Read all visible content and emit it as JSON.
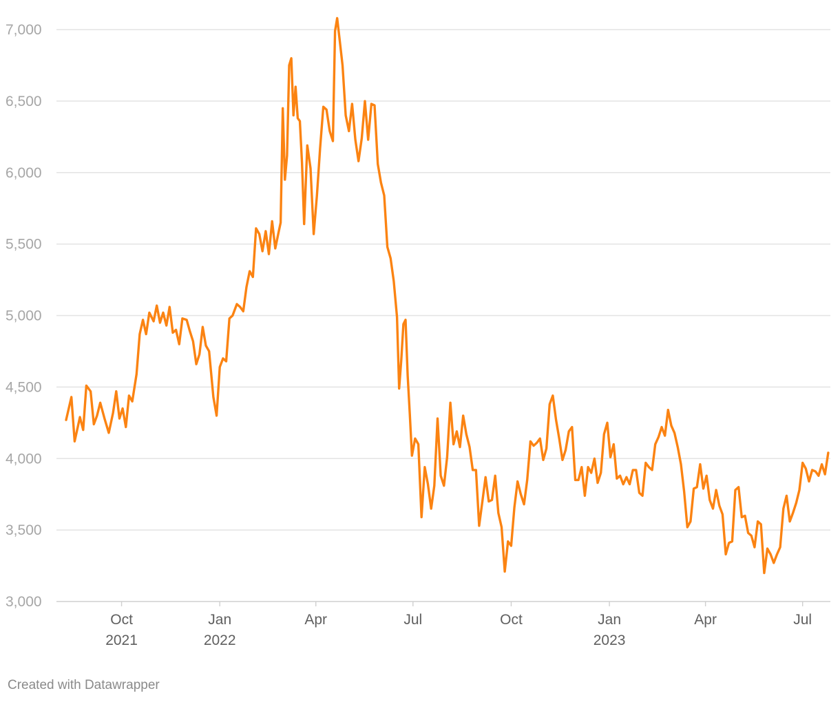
{
  "credit": "Created with Datawrapper",
  "colors": {
    "line": "#fb8312",
    "grid": "#e3e3e3",
    "tick_text": "#a6a6a6",
    "date_text": "#5f5f5f"
  },
  "chart_data": {
    "type": "line",
    "title": "",
    "xlabel": "",
    "ylabel": "",
    "ylim": [
      3000,
      7000
    ],
    "yticks": [
      3000,
      3500,
      4000,
      4500,
      5000,
      5500,
      6000,
      6500,
      7000
    ],
    "ytick_labels": [
      "3,000",
      "3,500",
      "4,000",
      "4,500",
      "5,000",
      "5,500",
      "6,000",
      "6,500",
      "7,000"
    ],
    "xlim": [
      "2021-08-01",
      "2023-07-27"
    ],
    "xticks": [
      {
        "date": "2021-10-01",
        "label": "Oct",
        "year": "2021"
      },
      {
        "date": "2022-01-01",
        "label": "Jan",
        "year": "2022"
      },
      {
        "date": "2022-04-01",
        "label": "Apr",
        "year": ""
      },
      {
        "date": "2022-07-01",
        "label": "Jul",
        "year": ""
      },
      {
        "date": "2022-10-01",
        "label": "Oct",
        "year": ""
      },
      {
        "date": "2023-01-01",
        "label": "Jan",
        "year": "2023"
      },
      {
        "date": "2023-04-01",
        "label": "Apr",
        "year": ""
      },
      {
        "date": "2023-07-01",
        "label": "Jul",
        "year": ""
      }
    ],
    "grid": true,
    "series": [
      {
        "color": "#fb8312",
        "x": [
          "2021-08-10",
          "2021-08-15",
          "2021-08-18",
          "2021-08-23",
          "2021-08-26",
          "2021-08-29",
          "2021-09-02",
          "2021-09-05",
          "2021-09-08",
          "2021-09-11",
          "2021-09-15",
          "2021-09-19",
          "2021-09-23",
          "2021-09-26",
          "2021-09-29",
          "2021-10-02",
          "2021-10-05",
          "2021-10-08",
          "2021-10-11",
          "2021-10-15",
          "2021-10-18",
          "2021-10-21",
          "2021-10-24",
          "2021-10-27",
          "2021-10-31",
          "2021-11-03",
          "2021-11-06",
          "2021-11-09",
          "2021-11-12",
          "2021-11-15",
          "2021-11-18",
          "2021-11-21",
          "2021-11-24",
          "2021-11-27",
          "2021-12-01",
          "2021-12-04",
          "2021-12-07",
          "2021-12-10",
          "2021-12-13",
          "2021-12-16",
          "2021-12-19",
          "2021-12-22",
          "2021-12-26",
          "2021-12-29",
          "2022-01-01",
          "2022-01-04",
          "2022-01-07",
          "2022-01-10",
          "2022-01-13",
          "2022-01-17",
          "2022-01-20",
          "2022-01-23",
          "2022-01-26",
          "2022-01-29",
          "2022-02-01",
          "2022-02-04",
          "2022-02-07",
          "2022-02-10",
          "2022-02-13",
          "2022-02-16",
          "2022-02-19",
          "2022-02-22",
          "2022-02-25",
          "2022-02-27",
          "2022-03-01",
          "2022-03-03",
          "2022-03-05",
          "2022-03-07",
          "2022-03-09",
          "2022-03-11",
          "2022-03-13",
          "2022-03-15",
          "2022-03-17",
          "2022-03-19",
          "2022-03-21",
          "2022-03-24",
          "2022-03-27",
          "2022-03-30",
          "2022-04-02",
          "2022-04-05",
          "2022-04-08",
          "2022-04-11",
          "2022-04-14",
          "2022-04-17",
          "2022-04-19",
          "2022-04-21",
          "2022-04-23",
          "2022-04-26",
          "2022-04-29",
          "2022-05-02",
          "2022-05-05",
          "2022-05-08",
          "2022-05-11",
          "2022-05-14",
          "2022-05-17",
          "2022-05-20",
          "2022-05-23",
          "2022-05-26",
          "2022-05-29",
          "2022-06-01",
          "2022-06-04",
          "2022-06-07",
          "2022-06-10",
          "2022-06-13",
          "2022-06-16",
          "2022-06-18",
          "2022-06-20",
          "2022-06-22",
          "2022-06-24",
          "2022-06-26",
          "2022-06-28",
          "2022-06-30",
          "2022-07-03",
          "2022-07-06",
          "2022-07-09",
          "2022-07-12",
          "2022-07-15",
          "2022-07-18",
          "2022-07-21",
          "2022-07-24",
          "2022-07-27",
          "2022-07-30",
          "2022-08-02",
          "2022-08-05",
          "2022-08-08",
          "2022-08-11",
          "2022-08-14",
          "2022-08-17",
          "2022-08-20",
          "2022-08-23",
          "2022-08-26",
          "2022-08-29",
          "2022-09-01",
          "2022-09-04",
          "2022-09-07",
          "2022-09-10",
          "2022-09-13",
          "2022-09-16",
          "2022-09-19",
          "2022-09-22",
          "2022-09-25",
          "2022-09-28",
          "2022-10-01",
          "2022-10-04",
          "2022-10-07",
          "2022-10-10",
          "2022-10-13",
          "2022-10-16",
          "2022-10-19",
          "2022-10-22",
          "2022-10-25",
          "2022-10-28",
          "2022-10-31",
          "2022-11-03",
          "2022-11-06",
          "2022-11-09",
          "2022-11-12",
          "2022-11-15",
          "2022-11-18",
          "2022-11-21",
          "2022-11-24",
          "2022-11-27",
          "2022-11-30",
          "2022-12-03",
          "2022-12-06",
          "2022-12-09",
          "2022-12-12",
          "2022-12-15",
          "2022-12-18",
          "2022-12-21",
          "2022-12-24",
          "2022-12-27",
          "2022-12-30",
          "2023-01-02",
          "2023-01-05",
          "2023-01-08",
          "2023-01-11",
          "2023-01-14",
          "2023-01-17",
          "2023-01-20",
          "2023-01-23",
          "2023-01-26",
          "2023-01-29",
          "2023-02-01",
          "2023-02-04",
          "2023-02-07",
          "2023-02-10",
          "2023-02-13",
          "2023-02-16",
          "2023-02-19",
          "2023-02-22",
          "2023-02-25",
          "2023-02-28",
          "2023-03-03",
          "2023-03-06",
          "2023-03-09",
          "2023-03-12",
          "2023-03-15",
          "2023-03-18",
          "2023-03-21",
          "2023-03-24",
          "2023-03-27",
          "2023-03-30",
          "2023-04-02",
          "2023-04-05",
          "2023-04-08",
          "2023-04-11",
          "2023-04-14",
          "2023-04-17",
          "2023-04-20",
          "2023-04-23",
          "2023-04-26",
          "2023-04-29",
          "2023-05-02",
          "2023-05-05",
          "2023-05-08",
          "2023-05-11",
          "2023-05-14",
          "2023-05-17",
          "2023-05-20",
          "2023-05-23",
          "2023-05-26",
          "2023-05-29",
          "2023-06-01",
          "2023-06-04",
          "2023-06-07",
          "2023-06-10",
          "2023-06-13",
          "2023-06-16",
          "2023-06-19",
          "2023-06-22",
          "2023-06-25",
          "2023-06-28",
          "2023-07-01",
          "2023-07-04",
          "2023-07-07",
          "2023-07-10",
          "2023-07-13",
          "2023-07-16",
          "2023-07-19",
          "2023-07-22",
          "2023-07-25"
        ],
        "y": [
          4270,
          4430,
          4120,
          4290,
          4200,
          4510,
          4470,
          4240,
          4300,
          4390,
          4280,
          4180,
          4320,
          4470,
          4280,
          4350,
          4220,
          4440,
          4400,
          4590,
          4870,
          4970,
          4870,
          5020,
          4960,
          5070,
          4950,
          5020,
          4930,
          5060,
          4880,
          4900,
          4800,
          4980,
          4970,
          4890,
          4820,
          4660,
          4730,
          4920,
          4790,
          4750,
          4430,
          4300,
          4640,
          4700,
          4680,
          4980,
          5000,
          5080,
          5060,
          5030,
          5200,
          5310,
          5270,
          5610,
          5570,
          5450,
          5590,
          5430,
          5660,
          5470,
          5580,
          5650,
          6450,
          5950,
          6120,
          6750,
          6800,
          6400,
          6600,
          6380,
          6360,
          6070,
          5640,
          6190,
          6030,
          5570,
          5840,
          6170,
          6460,
          6440,
          6290,
          6220,
          6990,
          7080,
          6950,
          6750,
          6400,
          6290,
          6480,
          6230,
          6080,
          6240,
          6500,
          6230,
          6480,
          6470,
          6060,
          5930,
          5840,
          5480,
          5400,
          5240,
          4990,
          4490,
          4690,
          4940,
          4970,
          4580,
          4310,
          4020,
          4140,
          4100,
          3590,
          3940,
          3820,
          3650,
          3810,
          4280,
          3880,
          3810,
          4010,
          4390,
          4100,
          4190,
          4080,
          4300,
          4170,
          4080,
          3920,
          3920,
          3530,
          3700,
          3870,
          3700,
          3710,
          3880,
          3620,
          3520,
          3210,
          3420,
          3390,
          3660,
          3840,
          3750,
          3680,
          3850,
          4120,
          4090,
          4110,
          4140,
          3990,
          4070,
          4380,
          4440,
          4270,
          4140,
          3990,
          4060,
          4190,
          4220,
          3850,
          3850,
          3940,
          3740,
          3940,
          3900,
          4000,
          3830,
          3900,
          4170,
          4250,
          4010,
          4100,
          3860,
          3880,
          3820,
          3870,
          3820,
          3920,
          3920,
          3760,
          3740,
          3970,
          3940,
          3920,
          4100,
          4150,
          4220,
          4160,
          4340,
          4230,
          4180,
          4080,
          3960,
          3770,
          3520,
          3560,
          3790,
          3800,
          3960,
          3790,
          3880,
          3710,
          3650,
          3780,
          3670,
          3610,
          3330,
          3410,
          3420,
          3780,
          3800,
          3590,
          3600,
          3480,
          3460,
          3380,
          3560,
          3540,
          3200,
          3370,
          3330,
          3270,
          3330,
          3380,
          3650,
          3740,
          3560,
          3620,
          3690,
          3780,
          3970,
          3930,
          3840,
          3920,
          3910,
          3880,
          3960,
          3890,
          4040
        ]
      }
    ]
  }
}
